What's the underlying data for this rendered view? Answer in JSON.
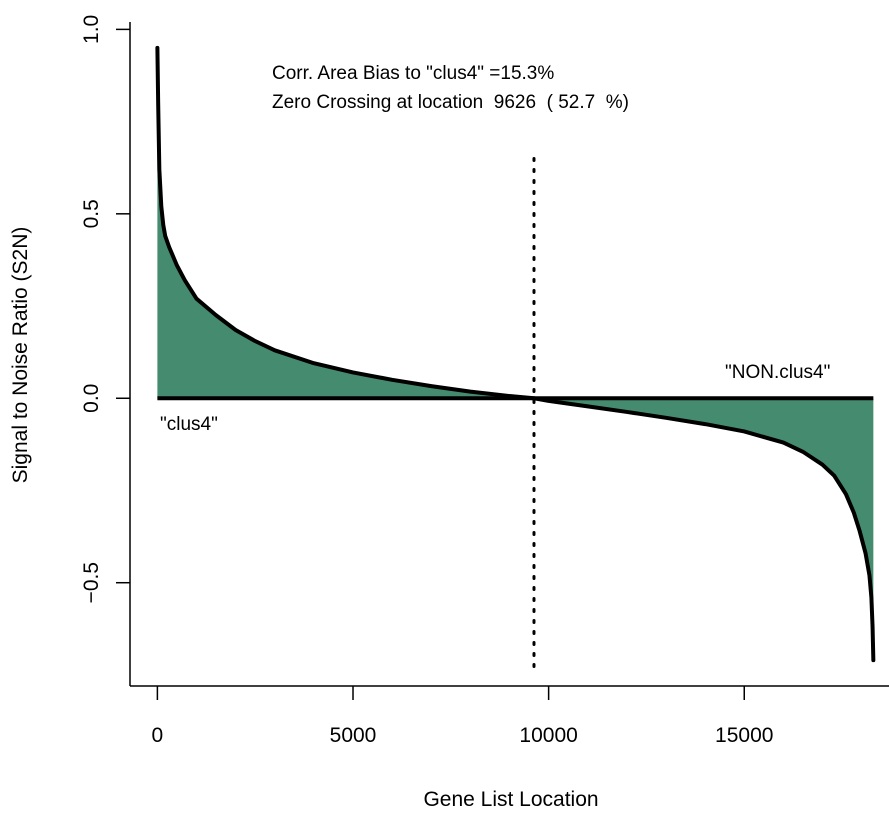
{
  "chart_data": {
    "type": "area",
    "xlabel": "Gene List Location",
    "ylabel": "Signal to Noise Ratio (S2N)",
    "xlim": [
      -700,
      18700
    ],
    "ylim": [
      -0.78,
      1.02
    ],
    "x_ticks": [
      0,
      5000,
      10000,
      15000
    ],
    "x_tick_labels": [
      "0",
      "5000",
      "10000",
      "15000"
    ],
    "y_ticks": [
      -0.5,
      0.0,
      0.5,
      1.0
    ],
    "y_tick_labels": [
      "−0.5",
      "0.0",
      "0.5",
      "1.0"
    ],
    "grid": false,
    "fill_color": "#458b6f",
    "line_color": "#000000",
    "series": [
      {
        "x": [
          0,
          20,
          50,
          100,
          150,
          200,
          300,
          400,
          500,
          700,
          1000,
          1500,
          2000,
          2500,
          3000,
          4000,
          5000,
          6000,
          7000,
          8000,
          9000,
          9626,
          10000,
          11000,
          12000,
          13000,
          14000,
          15000,
          16000,
          16500,
          17000,
          17300,
          17600,
          17800,
          17950,
          18100,
          18200,
          18250,
          18280,
          18300
        ],
        "y": [
          0.95,
          0.8,
          0.62,
          0.52,
          0.47,
          0.44,
          0.41,
          0.385,
          0.36,
          0.32,
          0.27,
          0.225,
          0.185,
          0.155,
          0.13,
          0.095,
          0.07,
          0.05,
          0.033,
          0.018,
          0.006,
          0.0,
          -0.007,
          -0.022,
          -0.037,
          -0.053,
          -0.07,
          -0.09,
          -0.12,
          -0.145,
          -0.18,
          -0.21,
          -0.26,
          -0.31,
          -0.36,
          -0.42,
          -0.48,
          -0.54,
          -0.62,
          -0.71
        ]
      }
    ],
    "zero_crossing_x": 9626,
    "zero_crossing_line_top": 0.65,
    "annotations": {
      "line1": "Corr. Area Bias to \"clus4\" =15.3%",
      "line2": "Zero Crossing at location  9626  ( 52.7  %)",
      "left_label": "\"clus4\"",
      "right_label": "\"NON.clus4\""
    }
  }
}
